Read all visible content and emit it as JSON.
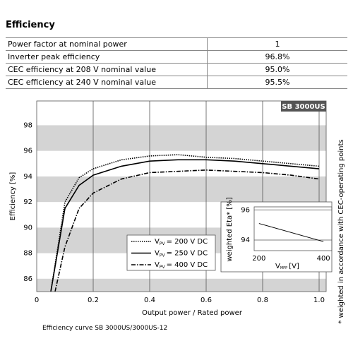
{
  "header": {
    "title": "Efficiency"
  },
  "table": {
    "rows": [
      [
        "Power factor at nominal power",
        "1"
      ],
      [
        "Inverter peak efficiency",
        "96.8%"
      ],
      [
        "CEC efficiency at 208 V nominal value",
        "95.0%"
      ],
      [
        "CEC efficiency at 240 V nominal value",
        "95.5%"
      ]
    ]
  },
  "caption": "Efficiency curve SB 3000US/3000US-12",
  "chart_data": [
    {
      "type": "line",
      "badge": "SB 3000US",
      "xlabel": "Output power / Rated power",
      "ylabel": "Efficiency [%]",
      "footnote": "* weighted in accordance with CEC-operating points",
      "xlim": [
        0,
        1.025
      ],
      "ylim": [
        85,
        99.9
      ],
      "xticks": [
        0,
        0.2,
        0.4,
        0.6,
        0.8,
        {
          "value": 1,
          "label": "1.0"
        }
      ],
      "yticks": [
        86,
        88,
        90,
        92,
        94,
        96,
        98
      ],
      "legend_symbol": "V",
      "legend_subscript": "PV",
      "series": [
        {
          "name": "= 200 V DC",
          "color": "#000000",
          "dash": "dotted",
          "x": [
            0.05,
            0.1,
            0.15,
            0.2,
            0.3,
            0.4,
            0.5,
            0.6,
            0.7,
            0.8,
            0.9,
            1.0
          ],
          "values": [
            85,
            92,
            93.9,
            94.6,
            95.3,
            95.6,
            95.7,
            95.5,
            95.4,
            95.2,
            95.0,
            94.8
          ]
        },
        {
          "name": "= 250 V DC",
          "color": "#000000",
          "dash": "solid",
          "x": [
            0.05,
            0.1,
            0.15,
            0.2,
            0.3,
            0.4,
            0.5,
            0.6,
            0.7,
            0.8,
            0.9,
            1.0
          ],
          "values": [
            85,
            91.5,
            93.3,
            94.1,
            94.8,
            95.2,
            95.3,
            95.3,
            95.2,
            95.0,
            94.8,
            94.6
          ]
        },
        {
          "name": "= 400 V DC",
          "color": "#000000",
          "dash": "dashdot",
          "x": [
            0.065,
            0.1,
            0.15,
            0.2,
            0.3,
            0.4,
            0.5,
            0.6,
            0.7,
            0.8,
            0.9,
            1.0
          ],
          "values": [
            85,
            88.5,
            91.5,
            92.7,
            93.8,
            94.3,
            94.4,
            94.5,
            94.4,
            94.3,
            94.1,
            93.8
          ]
        }
      ]
    },
    {
      "type": "line",
      "xlabel": "V",
      "xlabel_sub": "MPP",
      "xlabel_unit": "[V]",
      "ylabel": "weighted Eta* [%]",
      "xlim": [
        185,
        426
      ],
      "ylim": [
        93.3,
        96.2
      ],
      "xticks": [
        200,
        400
      ],
      "yticks": [
        94,
        96
      ],
      "series": [
        {
          "color": "#000000",
          "x": [
            200,
            400
          ],
          "values": [
            95.1,
            93.9
          ]
        }
      ]
    }
  ]
}
